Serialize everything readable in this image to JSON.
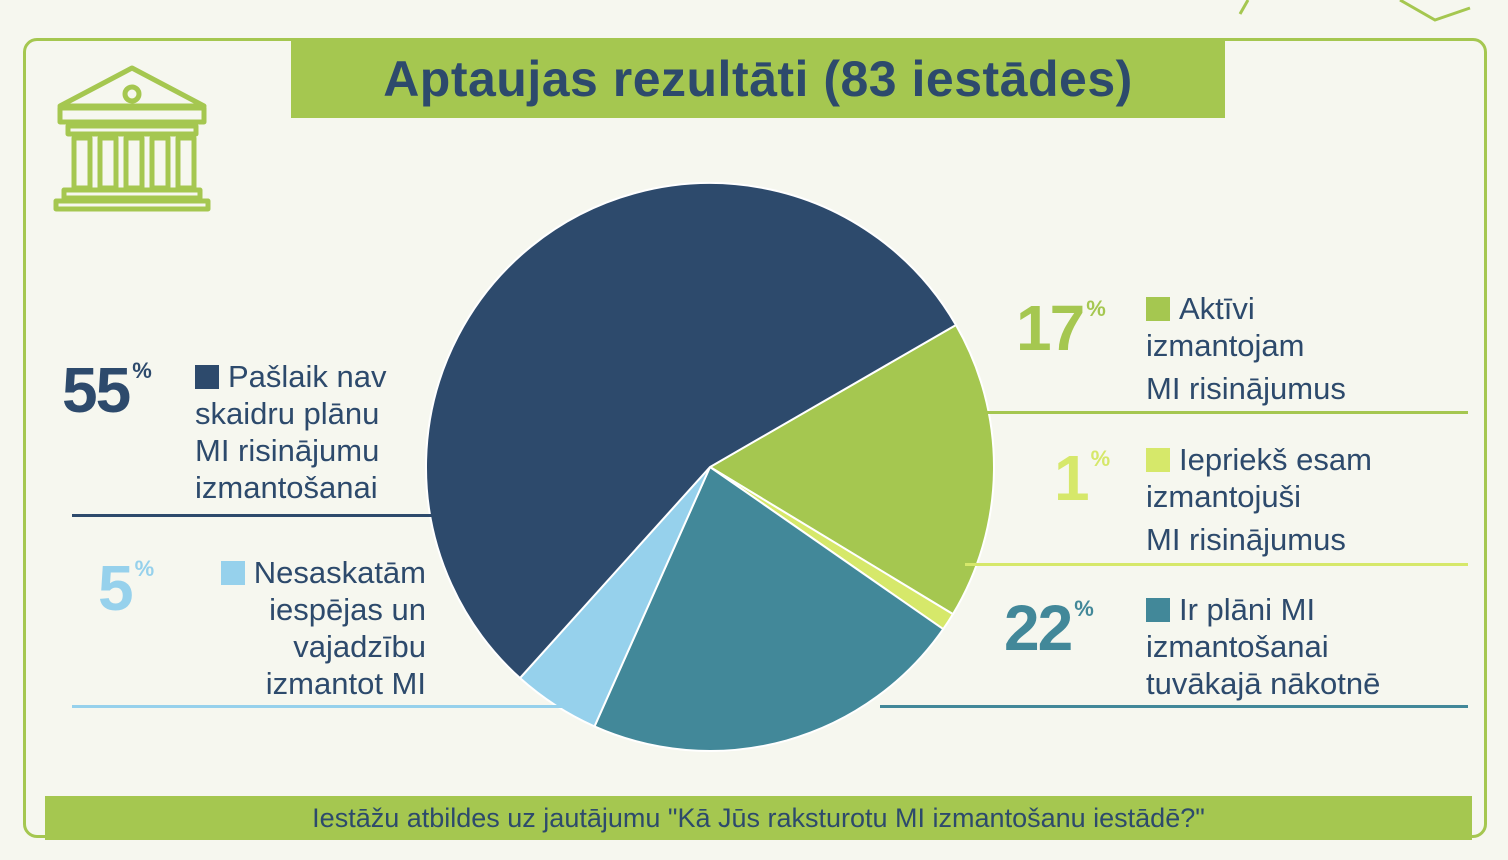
{
  "title": "Aptaujas rezultāti (83 iestādes)",
  "footer": "Iestāžu atbildes uz jautājumu \"Kā Jūs raksturotu MI izmantošanu iestādē?\"",
  "colors": {
    "green": "#a5c750",
    "navy": "#2d4a6c",
    "light_green": "#d6e86a",
    "teal": "#428899",
    "light_blue": "#96d1ec"
  },
  "icons": [
    "institution-icon"
  ],
  "chart_data": {
    "type": "pie",
    "title": "Aptaujas rezultāti (83 iestādes)",
    "slices": [
      {
        "value": 17,
        "display": "17",
        "unit": "%",
        "label_lines": [
          "Aktīvi",
          "izmantojam",
          "MI risinājumus"
        ],
        "color": "#a5c750"
      },
      {
        "value": 1,
        "display": "1",
        "unit": "%",
        "label_lines": [
          "Iepriekš esam",
          "izmantojuši",
          "MI risinājumus"
        ],
        "color": "#d6e86a"
      },
      {
        "value": 22,
        "display": "22",
        "unit": "%",
        "label_lines": [
          "Ir plāni MI",
          "izmantošanai",
          "tuvākajā nākotnē"
        ],
        "color": "#428899"
      },
      {
        "value": 5,
        "display": "5",
        "unit": "%",
        "label_lines": [
          "Nesaskatām",
          "iespējas un",
          "vajadzību",
          "izmantot MI"
        ],
        "color": "#96d1ec"
      },
      {
        "value": 55,
        "display": "55",
        "unit": "%",
        "label_lines": [
          "Pašlaik nav",
          "skaidru plānu",
          "MI risinājumu",
          "izmantošanai"
        ],
        "color": "#2d4a6c"
      }
    ]
  }
}
